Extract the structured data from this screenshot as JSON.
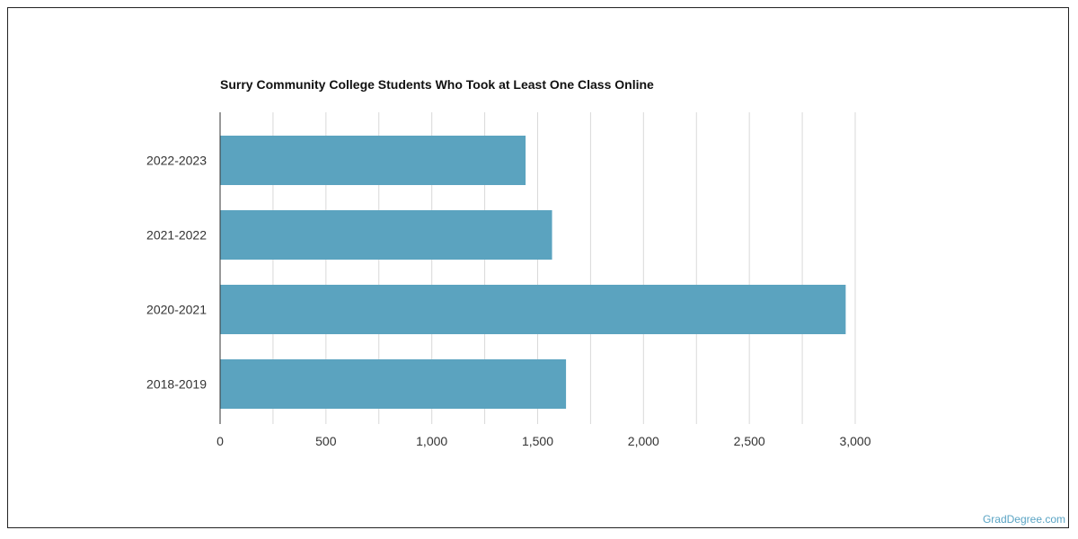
{
  "chart_data": {
    "type": "bar",
    "orientation": "horizontal",
    "title": "Surry Community College Students Who Took at Least One Class Online",
    "categories": [
      "2022-2023",
      "2021-2022",
      "2020-2021",
      "2018-2019"
    ],
    "values": [
      1443,
      1568,
      2955,
      1634
    ],
    "xlabel": "",
    "ylabel": "",
    "xlim": [
      0,
      3000
    ],
    "x_ticks": [
      0,
      500,
      1000,
      1500,
      2000,
      2500,
      3000
    ],
    "x_tick_labels": [
      "0",
      "500",
      "1,000",
      "1,500",
      "2,000",
      "2,500",
      "3,000"
    ],
    "grid": true,
    "bar_color": "#5ba3bf",
    "grid_color": "#d9d9d9"
  },
  "footer": {
    "credit": "GradDegree.com"
  }
}
